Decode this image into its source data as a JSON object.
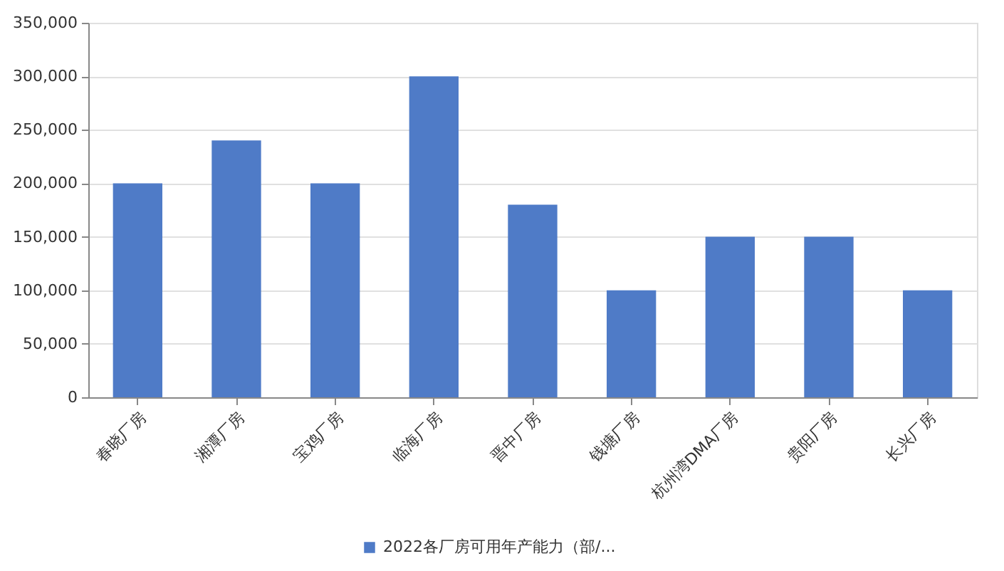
{
  "chart_data": {
    "type": "bar",
    "categories": [
      "春晓厂房",
      "湘潭厂房",
      "宝鸡厂房",
      "临海厂房",
      "晋中厂房",
      "钱塘厂房",
      "杭州湾DMA厂房",
      "贵阳厂房",
      "长兴厂房"
    ],
    "series": [
      {
        "name": "2022各厂房可用年产能力（部/...",
        "color": "#4f7bc7",
        "values": [
          200000,
          240000,
          200000,
          300000,
          180000,
          100000,
          150000,
          150000,
          100000
        ]
      }
    ],
    "ylim": [
      0,
      350000
    ],
    "yticks": [
      0,
      {
        "value": 50000,
        "label": "50,000"
      },
      {
        "value": 100000,
        "label": "100,000"
      },
      {
        "value": 150000,
        "label": "150,000"
      },
      {
        "value": 200000,
        "label": "200,000"
      },
      {
        "value": 250000,
        "label": "250,000"
      },
      {
        "value": 300000,
        "label": "300,000"
      },
      {
        "value": 350000,
        "label": "350,000"
      }
    ],
    "grid": "y",
    "legend": "bottom"
  }
}
